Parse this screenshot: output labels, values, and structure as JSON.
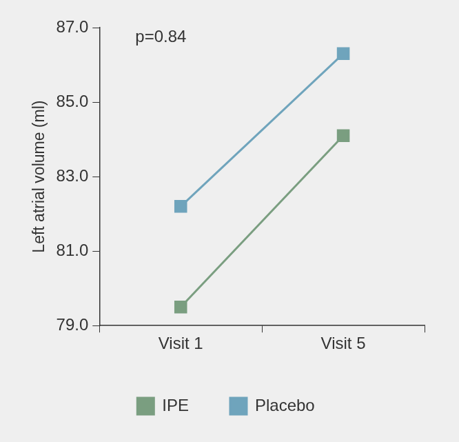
{
  "chart_data": {
    "type": "line",
    "y_label": "Left atrial volume (ml)",
    "annotations": [
      "p=0.84"
    ],
    "categories": [
      "Visit 1",
      "Visit 5"
    ],
    "series": [
      {
        "name": "IPE",
        "color": "#7a9e80",
        "values": [
          79.5,
          84.1
        ],
        "marker": "square"
      },
      {
        "name": "Placebo",
        "color": "#6fa4bc",
        "values": [
          82.2,
          86.3
        ],
        "marker": "square"
      }
    ],
    "ylim": [
      79,
      87
    ],
    "yticks": [
      {
        "value": 79,
        "label": "79.0"
      },
      {
        "value": 81,
        "label": "81.0"
      },
      {
        "value": 83,
        "label": "83.0"
      },
      {
        "value": 85,
        "label": "85.0"
      },
      {
        "value": 87,
        "label": "87.0"
      }
    ],
    "grid": false,
    "legend": "bottom"
  }
}
